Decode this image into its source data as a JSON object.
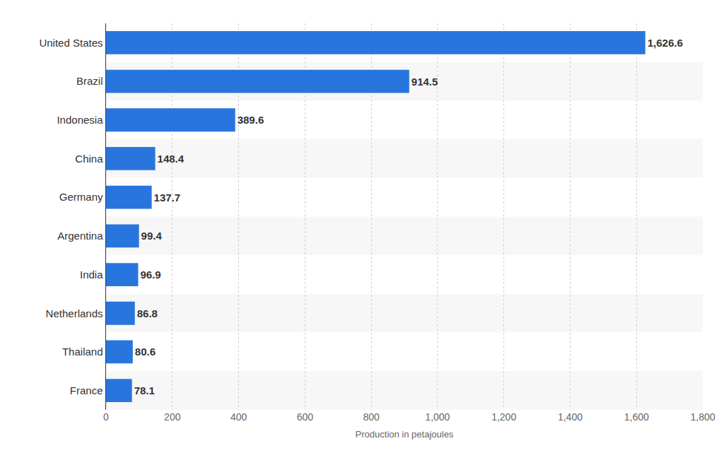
{
  "chart_data": {
    "type": "bar",
    "orientation": "horizontal",
    "categories": [
      "United States",
      "Brazil",
      "Indonesia",
      "China",
      "Germany",
      "Argentina",
      "India",
      "Netherlands",
      "Thailand",
      "France"
    ],
    "values": [
      1626.6,
      914.5,
      389.6,
      148.4,
      137.7,
      99.4,
      96.9,
      86.8,
      80.6,
      78.1
    ],
    "value_labels": [
      "1,626.6",
      "914.5",
      "389.6",
      "148.4",
      "137.7",
      "99.4",
      "96.9",
      "86.8",
      "80.6",
      "78.1"
    ],
    "data_labels": true,
    "color": "#2876dd",
    "x_label": "Production in petajoules",
    "xlim": [
      0,
      1800
    ],
    "xticks": [
      0,
      200,
      400,
      600,
      800,
      {
        "value": 1000,
        "label": "1,000"
      },
      {
        "value": 1200,
        "label": "1,200"
      },
      {
        "value": 1400,
        "label": "1,400"
      },
      {
        "value": 1600,
        "label": "1,600"
      },
      {
        "value": 1800,
        "label": "1,800"
      }
    ],
    "grid": true
  }
}
